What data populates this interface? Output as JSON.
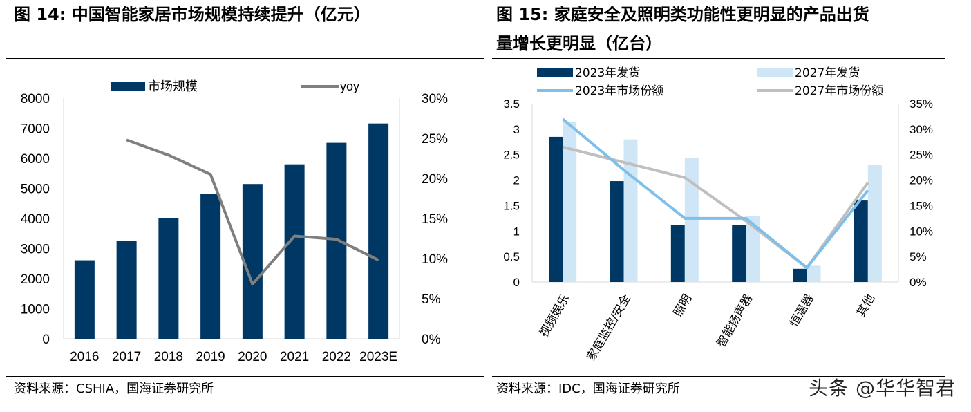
{
  "left": {
    "figure_title": "图 14:  中国智能家居市场规模持续提升（亿元）",
    "source": "资料来源：CSHIA，国海证券研究所"
  },
  "right": {
    "figure_title_line1": "图  15:  家庭安全及照明类功能性更明显的产品出货",
    "figure_title_line2": "量增长更明显（亿台）",
    "source": "资料来源：IDC，国海证券研究所"
  },
  "watermark": "头条 @华华智君",
  "colors": {
    "navy": "#003865",
    "light_blue": "#cfe6f7",
    "line_blue": "#7fbfea",
    "gray_line": "#7f7f7f",
    "light_gray_line": "#bfbfbf"
  },
  "chart_data": [
    {
      "type": "bar",
      "title": "中国智能家居市场规模持续提升（亿元）",
      "categories": [
        "2016",
        "2017",
        "2018",
        "2019",
        "2020",
        "2021",
        "2022",
        "2023E"
      ],
      "series": [
        {
          "name": "市场规模",
          "type": "bar",
          "axis": "left",
          "values": [
            2608,
            3254,
            4000,
            4810,
            5145,
            5800,
            6515,
            7157
          ]
        },
        {
          "name": "yoy",
          "type": "line",
          "axis": "right",
          "values": [
            null,
            24.8,
            22.9,
            20.5,
            6.8,
            12.8,
            12.4,
            9.8
          ]
        }
      ],
      "ylim": [
        0,
        8000
      ],
      "yticks": [
        "0",
        "1000",
        "2000",
        "3000",
        "4000",
        "5000",
        "6000",
        "7000",
        "8000"
      ],
      "y2lim": [
        0,
        30
      ],
      "y2ticks": [
        "0%",
        "5%",
        "10%",
        "15%",
        "20%",
        "25%",
        "30%"
      ],
      "legend": [
        "市场规模",
        "yoy"
      ]
    },
    {
      "type": "bar",
      "title": "家庭安全及照明类功能性更明显的产品出货量增长更明显（亿台）",
      "categories": [
        "视频娱乐",
        "家庭监控/安全",
        "照明",
        "智能扬声器",
        "恒温器",
        "其他"
      ],
      "series": [
        {
          "name": "2023年发货",
          "type": "bar",
          "axis": "left",
          "values": [
            2.85,
            1.98,
            1.12,
            1.12,
            0.26,
            1.6
          ]
        },
        {
          "name": "2027年发货",
          "type": "bar",
          "axis": "left",
          "values": [
            3.15,
            2.8,
            2.44,
            1.3,
            0.32,
            2.3
          ]
        },
        {
          "name": "2023年市场份额",
          "type": "line",
          "axis": "right",
          "values": [
            32.0,
            22.0,
            12.5,
            12.5,
            2.8,
            18.0
          ]
        },
        {
          "name": "2027年市场份额",
          "type": "line",
          "axis": "right",
          "values": [
            26.5,
            23.5,
            20.5,
            12.0,
            2.8,
            19.5
          ]
        }
      ],
      "ylim": [
        0,
        3.5
      ],
      "yticks": [
        "0",
        "0.5",
        "1",
        "1.5",
        "2",
        "2.5",
        "3",
        "3.5"
      ],
      "y2lim": [
        0,
        35
      ],
      "y2ticks": [
        "0%",
        "5%",
        "10%",
        "15%",
        "20%",
        "25%",
        "30%",
        "35%"
      ],
      "legend": [
        "2023年发货",
        "2027年发货",
        "2023年市场份额",
        "2027年市场份额"
      ]
    }
  ]
}
